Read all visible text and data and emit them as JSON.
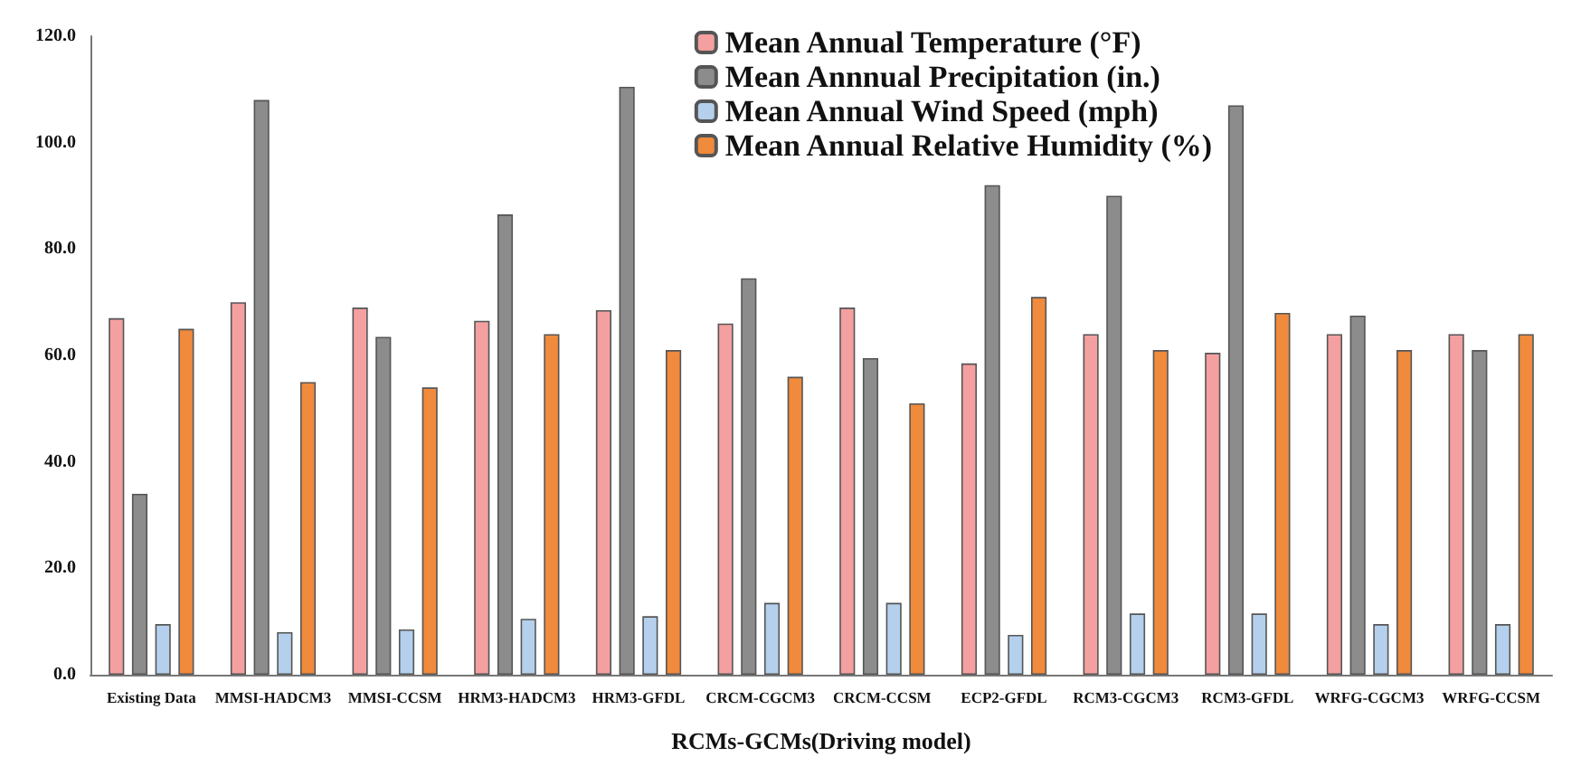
{
  "chart_data": {
    "type": "bar",
    "xlabel": "RCMs-GCMs(Driving model)",
    "categories": [
      "Existing Data",
      "MMSI-HADCM3",
      "MMSI-CCSM",
      "HRM3-HADCM3",
      "HRM3-GFDL",
      "CRCM-CGCM3",
      "CRCM-CCSM",
      "ECP2-GFDL",
      "RCM3-CGCM3",
      "RCM3-GFDL",
      "WRFG-CGCM3",
      "WRFG-CCSM"
    ],
    "series": [
      {
        "name": "Mean Annual Temperature (°F)",
        "color": "#f4a0a0",
        "values": [
          67,
          70,
          69,
          66.5,
          68.5,
          66,
          69,
          58.5,
          64,
          60.5,
          64,
          64
        ]
      },
      {
        "name": "Mean Annnual Precipitation (in.)",
        "color": "#8c8c8c",
        "values": [
          34,
          108,
          63.5,
          86.5,
          110.5,
          74.5,
          59.5,
          92,
          90,
          107,
          67.5,
          61
        ]
      },
      {
        "name": "Mean Annual Wind Speed (mph)",
        "color": "#b4d0ec",
        "values": [
          9.5,
          8,
          8.5,
          10.5,
          11,
          13.5,
          13.5,
          7.5,
          11.5,
          11.5,
          9.5,
          9.5
        ]
      },
      {
        "name": "Mean Annual Relative Humidity (%)",
        "color": "#f08a3c",
        "values": [
          65,
          55,
          54,
          64,
          61,
          56,
          51,
          71,
          61,
          68,
          61,
          64
        ]
      }
    ],
    "ylim": [
      0,
      120
    ],
    "yticks": [
      {
        "value": 0,
        "label": "0.0"
      },
      {
        "value": 20,
        "label": "20.0"
      },
      {
        "value": 40,
        "label": "40.0"
      },
      {
        "value": 60,
        "label": "60.0"
      },
      {
        "value": 80,
        "label": "80.0"
      },
      {
        "value": 100,
        "label": "100.0"
      },
      {
        "value": 120,
        "label": "120.0"
      }
    ],
    "grid": false,
    "legend": "top right"
  }
}
